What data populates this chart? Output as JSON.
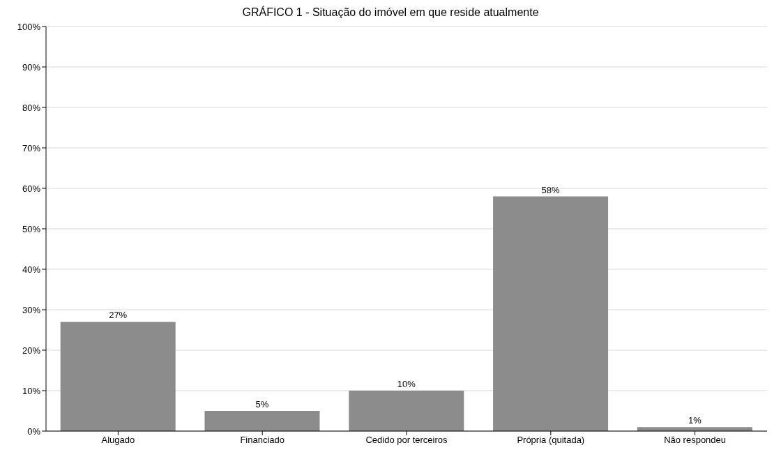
{
  "chart_data": {
    "type": "bar",
    "title": "GRÁFICO 1 - Situação do imóvel em que reside atualmente",
    "categories": [
      "Alugado",
      "Financiado",
      "Cedido por terceiros",
      "Própria (quitada)",
      "Não respondeu"
    ],
    "values": [
      27,
      5,
      10,
      58,
      1
    ],
    "value_labels": [
      "27%",
      "5%",
      "10%",
      "58%",
      "1%"
    ],
    "color": "#8c8c8c",
    "ylim": [
      0,
      100
    ],
    "yticks": [
      {
        "value": 0,
        "label": "0%"
      },
      {
        "value": 10,
        "label": "10%"
      },
      {
        "value": 20,
        "label": "20%"
      },
      {
        "value": 30,
        "label": "30%"
      },
      {
        "value": 40,
        "label": "40%"
      },
      {
        "value": 50,
        "label": "50%"
      },
      {
        "value": 60,
        "label": "60%"
      },
      {
        "value": 70,
        "label": "70%"
      },
      {
        "value": 80,
        "label": "80%"
      },
      {
        "value": 90,
        "label": "90%"
      },
      {
        "value": 100,
        "label": "100%"
      }
    ],
    "grid": "y"
  }
}
